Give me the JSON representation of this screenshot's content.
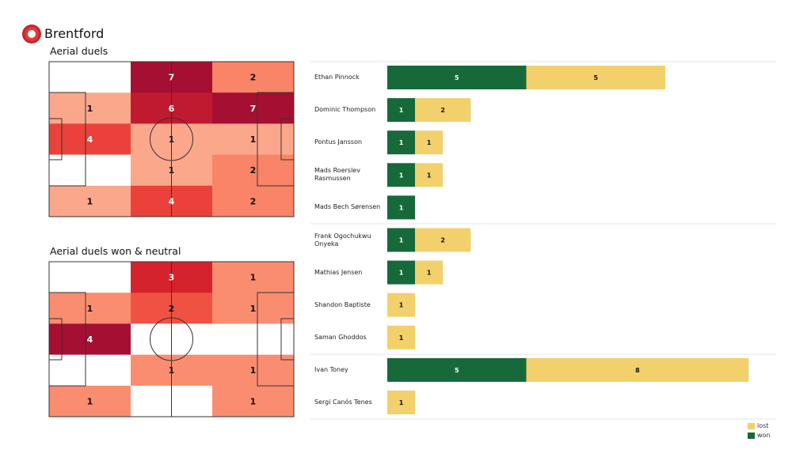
{
  "team": "Brentford",
  "colors": {
    "won": "#17693a",
    "lost": "#f2d06b"
  },
  "chart_data": [
    {
      "type": "heatmap",
      "title": "Aerial duels",
      "colormap": "Reds",
      "rows": 5,
      "cols": 3,
      "values": [
        [
          0,
          7,
          2
        ],
        [
          1,
          6,
          7
        ],
        [
          4,
          1,
          1
        ],
        [
          0,
          1,
          2
        ],
        [
          1,
          4,
          2
        ]
      ]
    },
    {
      "type": "heatmap",
      "title": "Aerial duels won & neutral",
      "colormap": "Reds",
      "rows": 5,
      "cols": 3,
      "values": [
        [
          0,
          3,
          1
        ],
        [
          1,
          2,
          1
        ],
        [
          4,
          0,
          0
        ],
        [
          0,
          1,
          1
        ],
        [
          1,
          0,
          1
        ]
      ]
    },
    {
      "type": "bar",
      "orientation": "horizontal",
      "stacked": true,
      "legend": {
        "placement": "bottom-right",
        "entries": [
          "lost",
          "won"
        ]
      },
      "categories": [
        "Ethan Pinnock",
        "Dominic Thompson",
        "Pontus Jansson",
        "Mads Roerslev Rasmussen",
        "Mads Bech Sørensen",
        "Frank Ogochukwu Onyeka",
        "Mathias Jensen",
        "Shandon Baptiste",
        "Saman Ghoddos",
        "Ivan Toney",
        "Sergi Canós Tenes"
      ],
      "series": [
        {
          "name": "won",
          "values": [
            5,
            1,
            1,
            1,
            1,
            1,
            1,
            0,
            0,
            5,
            0
          ]
        },
        {
          "name": "lost",
          "values": [
            5,
            2,
            1,
            1,
            0,
            2,
            1,
            1,
            1,
            8,
            1
          ]
        }
      ]
    }
  ]
}
